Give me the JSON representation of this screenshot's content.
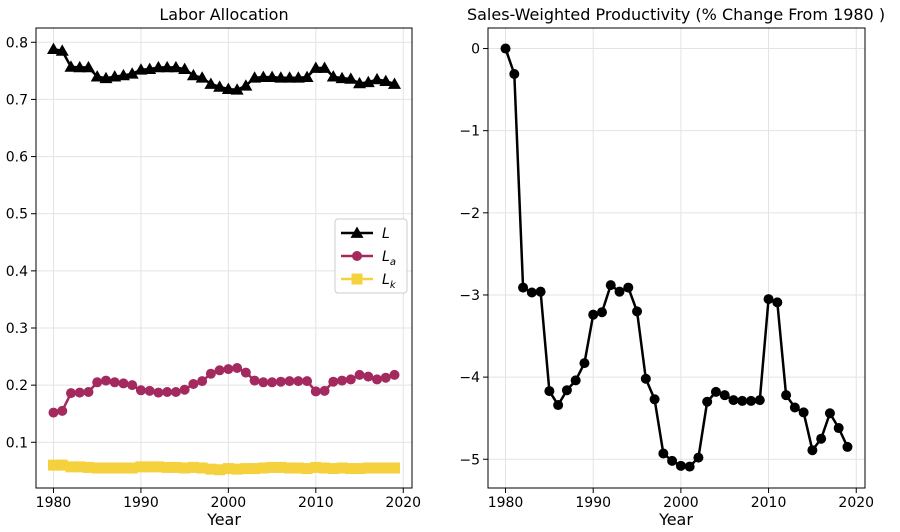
{
  "chart_data": [
    {
      "type": "line",
      "title": "Labor Allocation",
      "xlabel": "Year",
      "ylabel": "",
      "xlim": [
        1978,
        2021
      ],
      "ylim": [
        0.02,
        0.825
      ],
      "xticks": [
        1980,
        1990,
        2000,
        2010,
        2020
      ],
      "yticks": [
        0.1,
        0.2,
        0.3,
        0.4,
        0.5,
        0.6,
        0.7,
        0.8
      ],
      "grid": true,
      "legend_position": "center-right",
      "x": [
        1980,
        1981,
        1982,
        1983,
        1984,
        1985,
        1986,
        1987,
        1988,
        1989,
        1990,
        1991,
        1992,
        1993,
        1994,
        1995,
        1996,
        1997,
        1998,
        1999,
        2000,
        2001,
        2002,
        2003,
        2004,
        2005,
        2006,
        2007,
        2008,
        2009,
        2010,
        2011,
        2012,
        2013,
        2014,
        2015,
        2016,
        2017,
        2018,
        2019
      ],
      "series": [
        {
          "name": "L",
          "name_sub": "",
          "color": "#000000",
          "marker": "triangle",
          "values": [
            0.788,
            0.785,
            0.757,
            0.756,
            0.756,
            0.74,
            0.737,
            0.74,
            0.742,
            0.745,
            0.752,
            0.753,
            0.756,
            0.756,
            0.756,
            0.753,
            0.742,
            0.738,
            0.727,
            0.722,
            0.718,
            0.717,
            0.724,
            0.738,
            0.739,
            0.739,
            0.738,
            0.738,
            0.738,
            0.739,
            0.755,
            0.755,
            0.74,
            0.737,
            0.736,
            0.728,
            0.73,
            0.735,
            0.732,
            0.727
          ]
        },
        {
          "name": "L",
          "name_sub": "a",
          "color": "#a3295e",
          "marker": "circle",
          "values": [
            0.152,
            0.155,
            0.186,
            0.187,
            0.188,
            0.205,
            0.208,
            0.205,
            0.203,
            0.2,
            0.191,
            0.19,
            0.187,
            0.188,
            0.188,
            0.192,
            0.202,
            0.207,
            0.22,
            0.226,
            0.228,
            0.23,
            0.222,
            0.208,
            0.205,
            0.205,
            0.206,
            0.207,
            0.207,
            0.207,
            0.189,
            0.19,
            0.206,
            0.208,
            0.21,
            0.218,
            0.215,
            0.21,
            0.213,
            0.218
          ]
        },
        {
          "name": "L",
          "name_sub": "k",
          "color": "#f4d13d",
          "marker": "square",
          "values": [
            0.06,
            0.06,
            0.057,
            0.057,
            0.056,
            0.055,
            0.055,
            0.055,
            0.055,
            0.055,
            0.057,
            0.057,
            0.057,
            0.056,
            0.056,
            0.055,
            0.056,
            0.055,
            0.053,
            0.052,
            0.054,
            0.053,
            0.054,
            0.054,
            0.055,
            0.056,
            0.056,
            0.055,
            0.055,
            0.054,
            0.056,
            0.055,
            0.054,
            0.055,
            0.054,
            0.054,
            0.055,
            0.055,
            0.055,
            0.055
          ]
        }
      ]
    },
    {
      "type": "line",
      "title": "Sales-Weighted Productivity (% Change From 1980 )",
      "xlabel": "Year",
      "ylabel": "",
      "xlim": [
        1978,
        2021
      ],
      "ylim": [
        -5.35,
        0.25
      ],
      "xticks": [
        1980,
        1990,
        2000,
        2010,
        2020
      ],
      "yticks": [
        0,
        -1,
        -2,
        -3,
        -4,
        -5
      ],
      "ytick_labels": [
        "0",
        "−1",
        "−2",
        "−3",
        "−4",
        "−5"
      ],
      "grid": true,
      "x": [
        1980,
        1981,
        1982,
        1983,
        1984,
        1985,
        1986,
        1987,
        1988,
        1989,
        1990,
        1991,
        1992,
        1993,
        1994,
        1995,
        1996,
        1997,
        1998,
        1999,
        2000,
        2001,
        2002,
        2003,
        2004,
        2005,
        2006,
        2007,
        2008,
        2009,
        2010,
        2011,
        2012,
        2013,
        2014,
        2015,
        2016,
        2017,
        2018,
        2019
      ],
      "series": [
        {
          "color": "#000000",
          "marker": "circle",
          "values": [
            0.0,
            -0.31,
            -2.91,
            -2.97,
            -2.96,
            -4.17,
            -4.34,
            -4.16,
            -4.04,
            -3.83,
            -3.24,
            -3.21,
            -2.88,
            -2.96,
            -2.91,
            -3.2,
            -4.02,
            -4.27,
            -4.93,
            -5.02,
            -5.08,
            -5.09,
            -4.98,
            -4.3,
            -4.18,
            -4.22,
            -4.28,
            -4.29,
            -4.29,
            -4.28,
            -3.05,
            -3.09,
            -4.22,
            -4.37,
            -4.43,
            -4.89,
            -4.75,
            -4.44,
            -4.62,
            -4.85
          ]
        }
      ]
    }
  ]
}
